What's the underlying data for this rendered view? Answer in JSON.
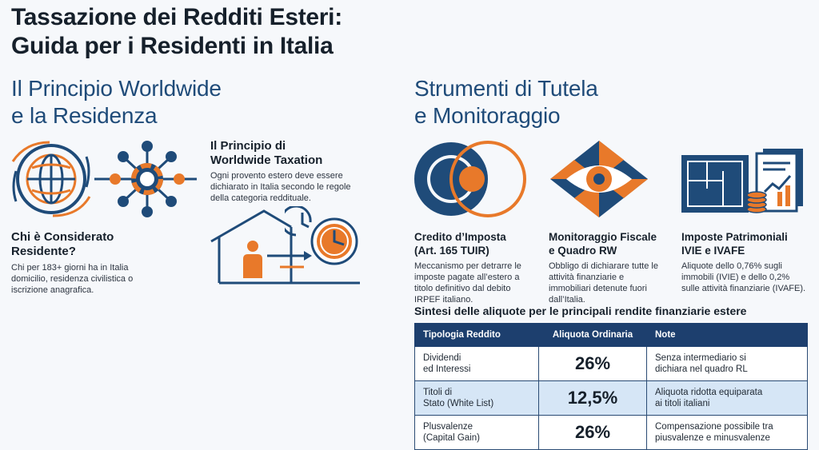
{
  "title": {
    "line1": "Tassazione dei Redditi Esteri:",
    "line2": "Guida per i Residenti in Italia"
  },
  "left_section": {
    "heading_line1": "Il Principio Worldwide",
    "heading_line2": "e la Residenza",
    "resident": {
      "title_line1": "Chi è Considerato",
      "title_line2": "Residente?",
      "text_line1": "Chi per 183+ giorni ha in Italia",
      "text_line2": "domicilio, residenza civilistica o",
      "text_line3": "iscrizione anagrafica."
    },
    "worldwide": {
      "title_line1": "Il Principio di",
      "title_line2": "Worldwide Taxation",
      "text_line1": "Ogni provento estero deve essere",
      "text_line2": "dichiarato in Italia secondo le regole",
      "text_line3": "della categoria reddituale."
    }
  },
  "right_section": {
    "heading_line1": "Strumenti di Tutela",
    "heading_line2": "e Monitoraggio",
    "cards": [
      {
        "title_line1": "Credito d’Imposta",
        "title_line2": "(Art. 165 TUIR)",
        "text_line1": "Meccanismo per detrarre le",
        "text_line2": "imposte pagate all’estero a",
        "text_line3": "titolo definitivo dal debito",
        "text_line4": "IRPEF italiano."
      },
      {
        "title_line1": "Monitoraggio Fiscale",
        "title_line2": "e Quadro RW",
        "text_line1": "Obbligo di dichiarare tutte le",
        "text_line2": "attività finanziarie e",
        "text_line3": "immobiliari detenute fuori",
        "text_line4": "dall’Italia."
      },
      {
        "title_line1": "Imposte Patrimoniali",
        "title_line2": "IVIE e IVAFE",
        "text_line1": "Aliquote dello 0,76% sugli",
        "text_line2": "immobili (IVIE) e dello 0,2%",
        "text_line3": "sulle attività finanziarie (IVAFE).",
        "text_line4": ""
      }
    ]
  },
  "table": {
    "title": "Sintesi delle aliquote per le principali rendite finanziarie estere",
    "headers": [
      "Tipologia Reddito",
      "Aliquota Ordinaria",
      "Note"
    ],
    "rows": [
      {
        "type_line1": "Dividendi",
        "type_line2": "ed Interessi",
        "rate": "26%",
        "note_line1": "Senza intermediario si",
        "note_line2": "dichiara nel quadro RL"
      },
      {
        "type_line1": "Titoli di",
        "type_line2": "Stato (White List)",
        "rate": "12,5%",
        "note_line1": "Aliquota ridotta equiparata",
        "note_line2": "ai titoli italiani"
      },
      {
        "type_line1": "Plusvalenze",
        "type_line2": "(Capital Gain)",
        "rate": "26%",
        "note_line1": "Compensazione possibile tra",
        "note_line2": "piusvalenze e minusvalenze"
      }
    ]
  },
  "colors": {
    "navy": "#1f4b79",
    "orange": "#e8792a",
    "header": "#1d3f6e",
    "highlight_row": "#d6e6f6"
  },
  "icons": [
    "globe-icon",
    "network-hub-icon",
    "house-person-icon",
    "clock-icon",
    "venn-circles-icon",
    "eye-diamond-icon",
    "blueprint-documents-icon"
  ]
}
